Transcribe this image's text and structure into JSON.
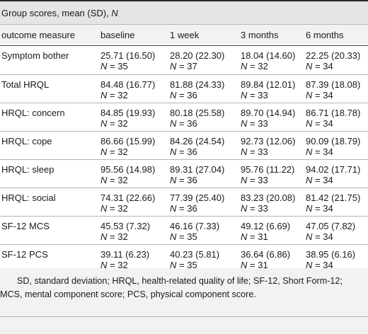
{
  "caption": {
    "prefix": "Group scores, mean (SD),",
    "n_symbol": "N"
  },
  "headers": [
    "outcome measure",
    "baseline",
    "1 week",
    "3 months",
    "6 months"
  ],
  "n_prefix": "N",
  "rows": [
    {
      "measure": "Symptom bother",
      "cells": [
        {
          "mean": "25.71 (16.50)",
          "n": "= 35"
        },
        {
          "mean": "28.20 (22.30)",
          "n": "= 37"
        },
        {
          "mean": "18.04 (14.60)",
          "n": "= 32"
        },
        {
          "mean": "22.25 (20.33)",
          "n": "= 34"
        }
      ]
    },
    {
      "measure": "Total HRQL",
      "cells": [
        {
          "mean": "84.48 (16.77)",
          "n": "= 32"
        },
        {
          "mean": "81.88 (24.33)",
          "n": "= 36"
        },
        {
          "mean": "89.84 (12.01)",
          "n": "= 33"
        },
        {
          "mean": "87.39 (18.08)",
          "n": "= 34"
        }
      ]
    },
    {
      "measure": "HRQL: concern",
      "cells": [
        {
          "mean": "84.85 (19.93)",
          "n": "= 32"
        },
        {
          "mean": "80.18 (25.58)",
          "n": "= 36"
        },
        {
          "mean": "89.70 (14.94)",
          "n": "= 33"
        },
        {
          "mean": "86.71 (18.78)",
          "n": "= 34"
        }
      ]
    },
    {
      "measure": "HRQL: cope",
      "cells": [
        {
          "mean": "86.66 (15.99)",
          "n": "= 32"
        },
        {
          "mean": "84.26 (24.54)",
          "n": "= 36"
        },
        {
          "mean": "92.73 (12.06)",
          "n": "= 33"
        },
        {
          "mean": "90.09 (18.79)",
          "n": "= 34"
        }
      ]
    },
    {
      "measure": "HRQL: sleep",
      "cells": [
        {
          "mean": "95.56 (14.98)",
          "n": "= 32"
        },
        {
          "mean": "89.31 (27.04)",
          "n": "= 36"
        },
        {
          "mean": "95.76 (11.22)",
          "n": "= 33"
        },
        {
          "mean": "94.02 (17.71)",
          "n": "= 34"
        }
      ]
    },
    {
      "measure": "HRQL: social",
      "cells": [
        {
          "mean": "74.31 (22.66)",
          "n": "= 32"
        },
        {
          "mean": "77.39 (25.40)",
          "n": "= 36"
        },
        {
          "mean": "83.23 (20.08)",
          "n": "= 33"
        },
        {
          "mean": "81.42 (21.75)",
          "n": "= 34"
        }
      ]
    },
    {
      "measure": "SF-12 MCS",
      "cells": [
        {
          "mean": "45.53 (7.32)",
          "n": "= 32"
        },
        {
          "mean": "46.16 (7.33)",
          "n": "= 35"
        },
        {
          "mean": "49.12 (6.69)",
          "n": "= 31"
        },
        {
          "mean": "47.05 (7.82)",
          "n": "= 34"
        }
      ]
    },
    {
      "measure": "SF-12 PCS",
      "cells": [
        {
          "mean": "39.11 (6.23)",
          "n": "= 32"
        },
        {
          "mean": "40.23 (5.81)",
          "n": "= 35"
        },
        {
          "mean": "36.64 (6.86)",
          "n": "= 31"
        },
        {
          "mean": "38.95 (6.16)",
          "n": "= 34"
        }
      ]
    }
  ],
  "footnote": "SD, standard deviation; HRQL, health-related quality of life; SF-12, Short Form-12; MCS, mental component score; PCS, physical component score."
}
